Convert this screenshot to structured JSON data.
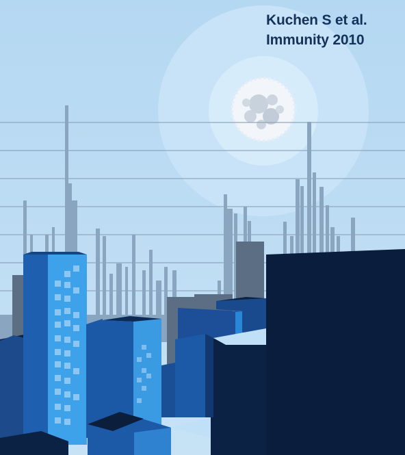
{
  "cover": {
    "credit_line_1": "Kuchen S et al.",
    "credit_line_2": "Immunity 2010"
  },
  "colors": {
    "sky": "#bcdcf3",
    "halo": "#d3e9f9",
    "cell": "#eef4fa",
    "far_skyline": "#8aa5c0",
    "mid_skyline": "#5c6e84",
    "tower_light": "#3f9fe6",
    "tower_mid": "#1c5aa8",
    "tower_dark": "#0c2244",
    "text": "#14315a"
  },
  "icons": [
    "lymphocyte-cell",
    "city-skyline"
  ]
}
